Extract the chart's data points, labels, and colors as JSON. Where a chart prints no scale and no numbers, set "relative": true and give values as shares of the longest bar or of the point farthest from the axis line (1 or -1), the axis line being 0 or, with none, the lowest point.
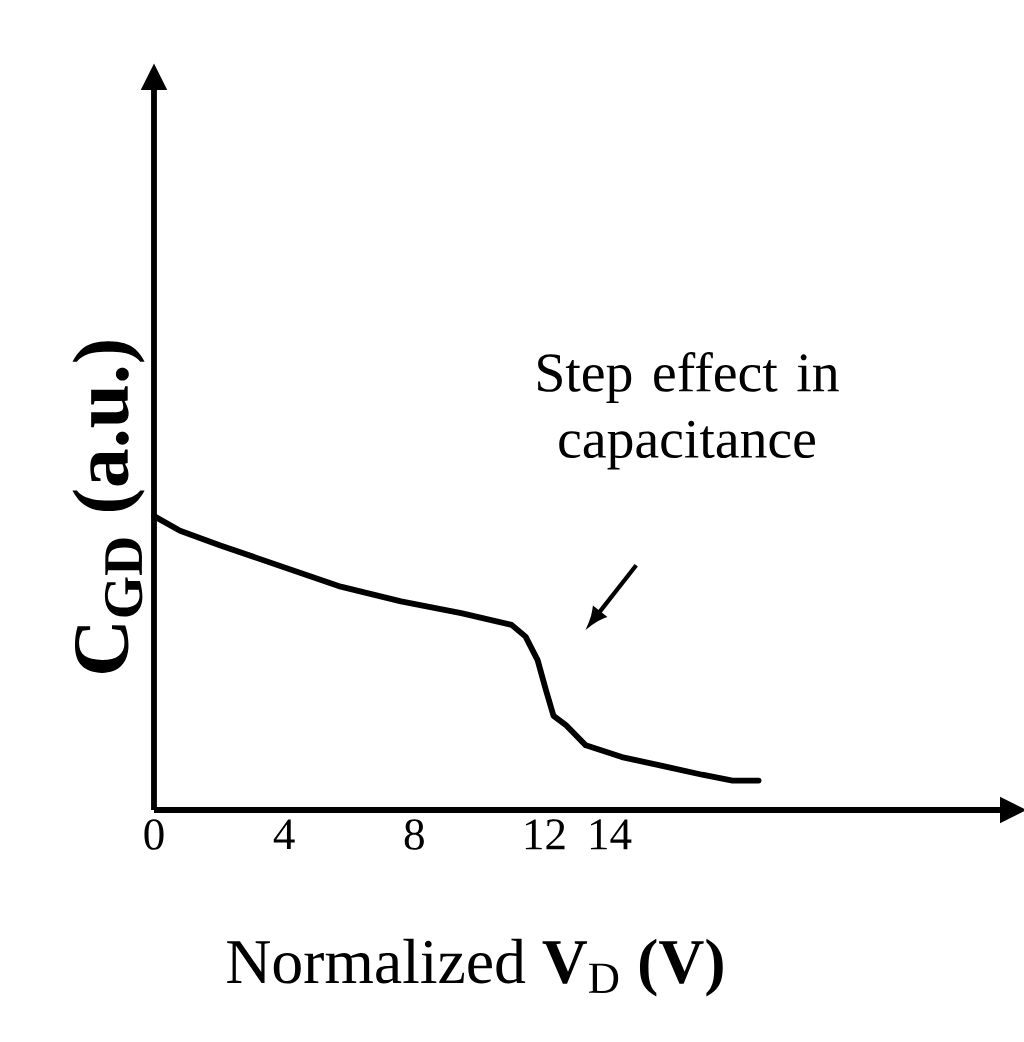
{
  "chart_data": {
    "type": "line",
    "relative": true,
    "xlabel": "Normalized **V**$_{D}$ **(V)**",
    "ylabel": "C$_{GD}$ (a.u.)",
    "x": [
      0,
      0.8,
      2.04,
      3.89,
      5.74,
      7.59,
      9.44,
      10.99,
      11.42,
      11.79,
      12.04,
      12.28,
      12.65,
      13.27,
      14.38,
      15.62,
      16.85,
      17.78,
      18.58
    ],
    "series": [
      {
        "color": "#000000",
        "values": [
          1,
          0.95,
          0.9,
          0.83,
          0.76,
          0.71,
          0.67,
          0.63,
          0.59,
          0.51,
          0.41,
          0.32,
          0.29,
          0.22,
          0.18,
          0.15,
          0.12,
          0.1,
          0.1
        ]
      }
    ],
    "xlim": [
      0,
      26
    ],
    "xticks": [
      0,
      4,
      8,
      12,
      14
    ],
    "annotations": [
      "Step effect in capacitance"
    ],
    "marker": "none",
    "line_style": "solid"
  }
}
